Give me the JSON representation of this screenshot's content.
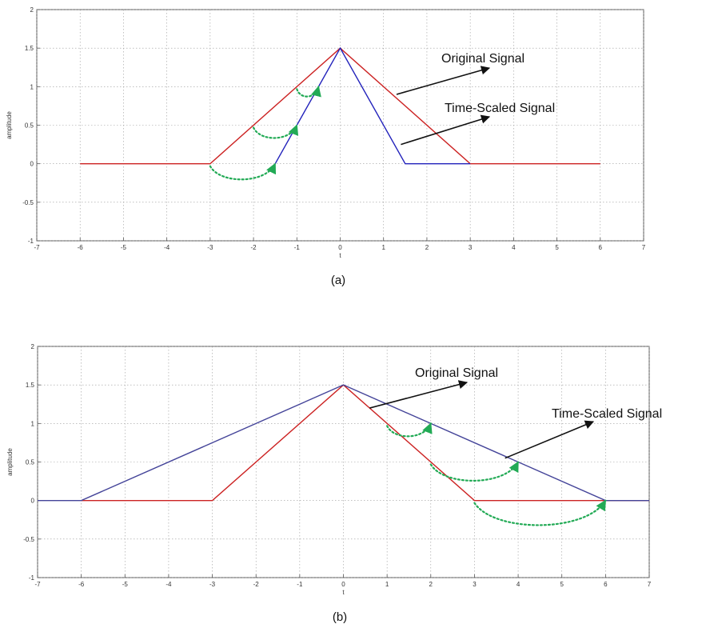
{
  "chart_data": [
    {
      "type": "line",
      "caption": "(a)",
      "xlabel": "t",
      "ylabel": "amplitude",
      "xlim": [
        -7,
        7
      ],
      "ylim": [
        -1,
        2
      ],
      "xticks": [
        "-7",
        "-6",
        "-5",
        "-4",
        "-3",
        "-2",
        "-1",
        "0",
        "1",
        "2",
        "3",
        "4",
        "5",
        "6",
        "7"
      ],
      "yticks": [
        "-1",
        "-0.5",
        "0",
        "0.5",
        "1",
        "1.5",
        "2"
      ],
      "grid": true,
      "series": [
        {
          "color": "#cc2222",
          "x": [
            -6,
            -3,
            0,
            3,
            6
          ],
          "y": [
            0,
            0,
            1.5,
            0,
            0
          ]
        },
        {
          "color": "#2222bb",
          "x": [
            -1.5,
            0,
            1.5,
            3
          ],
          "y": [
            0,
            1.5,
            0,
            0
          ]
        }
      ],
      "annotations": [
        {
          "text": "Original Signal",
          "target": [
            1.3,
            0.9
          ]
        },
        {
          "text": "Time-Scaled Signal",
          "target": [
            1.4,
            0.25
          ]
        }
      ],
      "arcs": [
        {
          "from": [
            -3,
            0
          ],
          "to": [
            -1.5,
            0
          ]
        },
        {
          "from": [
            -2,
            0.5
          ],
          "to": [
            -1,
            0.5
          ]
        },
        {
          "from": [
            -1,
            1
          ],
          "to": [
            -0.5,
            1
          ]
        }
      ],
      "arc_color": "#22aa55"
    },
    {
      "type": "line",
      "caption": "(b)",
      "xlabel": "t",
      "ylabel": "amplitude",
      "xlim": [
        -7,
        7
      ],
      "ylim": [
        -1,
        2
      ],
      "xticks": [
        "-7",
        "-6",
        "-5",
        "-4",
        "-3",
        "-2",
        "-1",
        "0",
        "1",
        "2",
        "3",
        "4",
        "5",
        "6",
        "7"
      ],
      "yticks": [
        "-1",
        "-0.5",
        "0",
        "0.5",
        "1",
        "1.5",
        "2"
      ],
      "grid": true,
      "series": [
        {
          "color": "#cc2222",
          "x": [
            -6,
            -3,
            0,
            3,
            7
          ],
          "y": [
            0,
            0,
            1.5,
            0,
            0
          ]
        },
        {
          "color": "#444499",
          "x": [
            -7,
            -6,
            0,
            6,
            7
          ],
          "y": [
            0,
            0,
            1.5,
            0,
            0
          ]
        }
      ],
      "annotations": [
        {
          "text": "Original Signal",
          "target": [
            0.6,
            1.2
          ]
        },
        {
          "text": "Time-Scaled Signal",
          "target": [
            3.7,
            0.55
          ]
        }
      ],
      "arcs": [
        {
          "from": [
            1,
            1
          ],
          "to": [
            2,
            1
          ]
        },
        {
          "from": [
            2,
            0.5
          ],
          "to": [
            4,
            0.5
          ]
        },
        {
          "from": [
            3,
            0
          ],
          "to": [
            6,
            0
          ]
        }
      ],
      "arc_color": "#22aa55"
    }
  ]
}
